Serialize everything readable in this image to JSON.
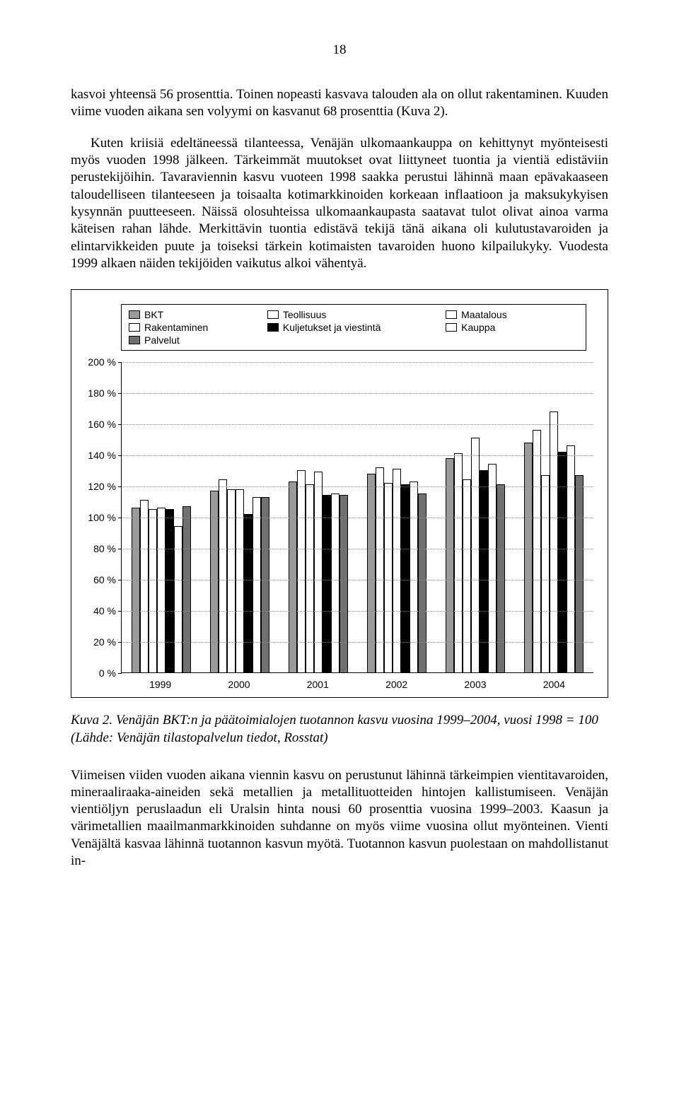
{
  "page_number": "18",
  "paragraph1": "kasvoi yhteensä 56 prosenttia. Toinen nopeasti kasvava talouden ala on ollut rakentaminen. Kuuden viime vuoden aikana sen volyymi on kasvanut 68 prosenttia (Kuva 2).",
  "paragraph2": "Kuten kriisiä edeltäneessä tilanteessa, Venäjän ulkomaankauppa on kehittynyt myönteisesti myös vuoden 1998 jälkeen. Tärkeimmät muutokset ovat liittyneet tuontia ja vientiä edistäviin perustekijöihin. Tavaraviennin kasvu vuoteen 1998 saakka perustui lähinnä maan epävakaaseen taloudelliseen tilanteeseen ja toisaalta kotimarkkinoiden korkeaan inflaatioon ja maksukykyisen kysynnän puutteeseen. Näissä olosuhteissa ulkomaankaupasta saatavat tulot olivat ainoa varma käteisen rahan lähde. Merkittävin tuontia edistävä tekijä tänä aikana oli kulutustavaroiden ja elintarvikkeiden puute ja toiseksi tärkein kotimaisten tavaroiden huono kilpailukyky. Vuodesta 1999 alkaen näiden tekijöiden vaikutus alkoi vähentyä.",
  "chart": {
    "type": "bar",
    "ylim": [
      0,
      200
    ],
    "ytick_step": 20,
    "y_suffix": " %",
    "categories": [
      "1999",
      "2000",
      "2001",
      "2002",
      "2003",
      "2004"
    ],
    "series": [
      {
        "key": "bkt",
        "label": "BKT",
        "color": "#9a9a9a",
        "pattern": "solid"
      },
      {
        "key": "teollisuus",
        "label": "Teollisuus",
        "color": "#ffffff",
        "pattern": "dots"
      },
      {
        "key": "maatalous",
        "label": "Maatalous",
        "color": "#e6e6e6",
        "pattern": "hatch"
      },
      {
        "key": "rakentaminen",
        "label": "Rakentaminen",
        "color": "#cfcfcf",
        "pattern": "diamond"
      },
      {
        "key": "kuljetukset",
        "label": "Kuljetukset ja viestintä",
        "color": "#000000",
        "pattern": "solid"
      },
      {
        "key": "kauppa",
        "label": "Kauppa",
        "color": "#ffffff",
        "pattern": "cross"
      },
      {
        "key": "palvelut",
        "label": "Palvelut",
        "color": "#707070",
        "pattern": "solid"
      }
    ],
    "values": {
      "bkt": [
        106,
        117,
        123,
        128,
        138,
        148
      ],
      "teollisuus": [
        111,
        124,
        130,
        132,
        141,
        156
      ],
      "maatalous": [
        105,
        118,
        121,
        122,
        124,
        127
      ],
      "rakentaminen": [
        106,
        118,
        129,
        131,
        151,
        168
      ],
      "kuljetukset": [
        105,
        102,
        114,
        121,
        130,
        142
      ],
      "kauppa": [
        94,
        113,
        115,
        123,
        134,
        146
      ],
      "palvelut": [
        107,
        113,
        114,
        115,
        121,
        127
      ]
    }
  },
  "caption": "Kuva 2.   Venäjän BKT:n ja päätoimialojen tuotannon kasvu vuosina 1999–2004, vuosi 1998 = 100 (Lähde: Venäjän tilastopalvelun tiedot, Rosstat)",
  "paragraph3": "Viimeisen viiden vuoden aikana viennin kasvu on perustunut lähinnä tärkeimpien vientitavaroiden, mineraaliraaka-aineiden sekä metallien ja metallituotteiden hintojen kallistumiseen. Venäjän vientiöljyn peruslaadun eli Uralsin hinta nousi 60 prosenttia vuosina 1999–2003. Kaasun ja värimetallien maailmanmarkkinoiden suhdanne on myös viime vuosina ollut myönteinen. Vienti Venäjältä kasvaa lähinnä tuotannon kasvun myötä. Tuotannon kasvun puolestaan on mahdollistanut in-"
}
